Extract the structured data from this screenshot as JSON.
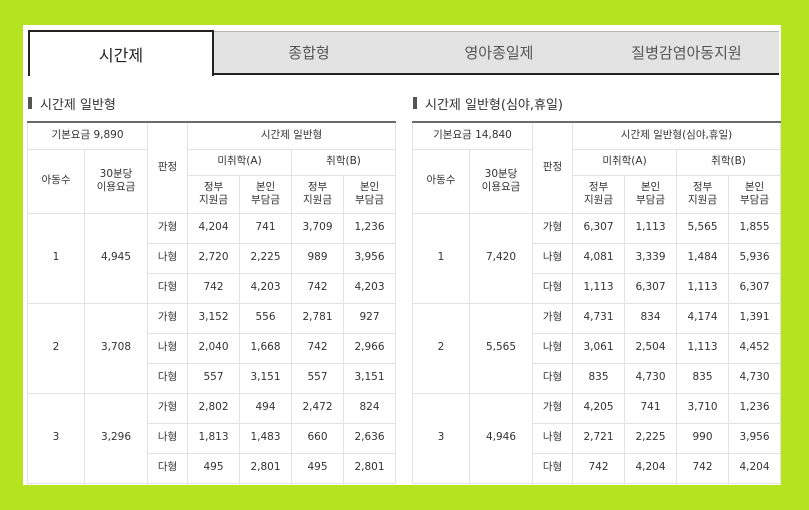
{
  "tabs": [
    {
      "label": "시간제",
      "active": true
    },
    {
      "label": "종합형",
      "active": false
    },
    {
      "label": "영아종일제",
      "active": false
    },
    {
      "label": "질병감염아동지원",
      "active": false
    }
  ],
  "left": {
    "title": "시간제 일반형",
    "base_fee": "기본요금 9,890",
    "group_header": "시간제 일반형",
    "headers": {
      "children": "아동수",
      "per30": "30분당 이용요금",
      "grade": "판정",
      "unemployed": "미취학(A)",
      "employed": "취학(B)",
      "gov": "정부 지원금",
      "self": "본인 부담금"
    },
    "groups": [
      {
        "children": "1",
        "fee": "4,945",
        "rows": [
          {
            "grade": "가형",
            "a_gov": "4,204",
            "a_self": "741",
            "b_gov": "3,709",
            "b_self": "1,236"
          },
          {
            "grade": "나형",
            "a_gov": "2,720",
            "a_self": "2,225",
            "b_gov": "989",
            "b_self": "3,956"
          },
          {
            "grade": "다형",
            "a_gov": "742",
            "a_self": "4,203",
            "b_gov": "742",
            "b_self": "4,203"
          }
        ]
      },
      {
        "children": "2",
        "fee": "3,708",
        "rows": [
          {
            "grade": "가형",
            "a_gov": "3,152",
            "a_self": "556",
            "b_gov": "2,781",
            "b_self": "927"
          },
          {
            "grade": "나형",
            "a_gov": "2,040",
            "a_self": "1,668",
            "b_gov": "742",
            "b_self": "2,966"
          },
          {
            "grade": "다형",
            "a_gov": "557",
            "a_self": "3,151",
            "b_gov": "557",
            "b_self": "3,151"
          }
        ]
      },
      {
        "children": "3",
        "fee": "3,296",
        "rows": [
          {
            "grade": "가형",
            "a_gov": "2,802",
            "a_self": "494",
            "b_gov": "2,472",
            "b_self": "824"
          },
          {
            "grade": "나형",
            "a_gov": "1,813",
            "a_self": "1,483",
            "b_gov": "660",
            "b_self": "2,636"
          },
          {
            "grade": "다형",
            "a_gov": "495",
            "a_self": "2,801",
            "b_gov": "495",
            "b_self": "2,801"
          }
        ]
      }
    ]
  },
  "right": {
    "title": "시간제 일반형(심야,휴일)",
    "base_fee": "기본요금 14,840",
    "group_header": "시간제 일반형(심야,휴일)",
    "headers": {
      "children": "아동수",
      "per30": "30분당 이용요금",
      "grade": "판정",
      "unemployed": "미취학(A)",
      "employed": "취학(B)",
      "gov": "정부 지원금",
      "self": "본인 부담금"
    },
    "groups": [
      {
        "children": "1",
        "fee": "7,420",
        "rows": [
          {
            "grade": "가형",
            "a_gov": "6,307",
            "a_self": "1,113",
            "b_gov": "5,565",
            "b_self": "1,855"
          },
          {
            "grade": "나형",
            "a_gov": "4,081",
            "a_self": "3,339",
            "b_gov": "1,484",
            "b_self": "5,936"
          },
          {
            "grade": "다형",
            "a_gov": "1,113",
            "a_self": "6,307",
            "b_gov": "1,113",
            "b_self": "6,307"
          }
        ]
      },
      {
        "children": "2",
        "fee": "5,565",
        "rows": [
          {
            "grade": "가형",
            "a_gov": "4,731",
            "a_self": "834",
            "b_gov": "4,174",
            "b_self": "1,391"
          },
          {
            "grade": "나형",
            "a_gov": "3,061",
            "a_self": "2,504",
            "b_gov": "1,113",
            "b_self": "4,452"
          },
          {
            "grade": "다형",
            "a_gov": "835",
            "a_self": "4,730",
            "b_gov": "835",
            "b_self": "4,730"
          }
        ]
      },
      {
        "children": "3",
        "fee": "4,946",
        "rows": [
          {
            "grade": "가형",
            "a_gov": "4,205",
            "a_self": "741",
            "b_gov": "3,710",
            "b_self": "1,236"
          },
          {
            "grade": "나형",
            "a_gov": "2,721",
            "a_self": "2,225",
            "b_gov": "990",
            "b_self": "3,956"
          },
          {
            "grade": "다형",
            "a_gov": "742",
            "a_self": "4,204",
            "b_gov": "742",
            "b_self": "4,204"
          }
        ]
      }
    ]
  }
}
